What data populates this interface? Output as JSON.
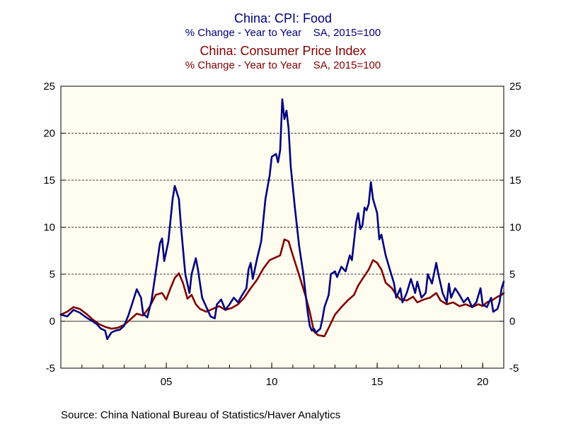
{
  "titles": {
    "series1_title": "China: CPI: Food",
    "series1_sub": "% Change - Year to Year    SA, 2015=100",
    "series2_title": "China: Consumer Price Index",
    "series2_sub": "% Change - Year to Year    SA, 2015=100"
  },
  "source": "Source:  China National Bureau of Statistics/Haver Analytics",
  "colors": {
    "cpi_food": "#000080",
    "cpi": "#800000",
    "plot_bg": "#FFFDF0",
    "frame": "#000000",
    "grid": "#000000"
  },
  "chart_data": {
    "type": "line",
    "xlabel": "",
    "ylabel": "",
    "xlim": [
      2000.0,
      2021.0
    ],
    "ylim": [
      -5,
      25
    ],
    "y_ticks": [
      -5,
      0,
      5,
      10,
      15,
      20,
      25
    ],
    "x_ticks": [
      {
        "value": 2005,
        "label": "05"
      },
      {
        "value": 2010,
        "label": "10"
      },
      {
        "value": 2015,
        "label": "15"
      },
      {
        "value": 2020,
        "label": "20"
      }
    ],
    "grid": "horizontal dashed at 5, 10, 15, 20",
    "series": [
      {
        "name": "China: CPI: Food",
        "color": "#000080",
        "points": [
          [
            2000.0,
            0.7
          ],
          [
            2000.3,
            0.5
          ],
          [
            2000.6,
            1.2
          ],
          [
            2000.9,
            0.9
          ],
          [
            2001.2,
            0.4
          ],
          [
            2001.5,
            0.0
          ],
          [
            2001.7,
            -0.3
          ],
          [
            2001.9,
            -0.8
          ],
          [
            2002.1,
            -1.0
          ],
          [
            2002.2,
            -1.9
          ],
          [
            2002.4,
            -1.2
          ],
          [
            2002.6,
            -1.0
          ],
          [
            2002.8,
            -0.9
          ],
          [
            2003.0,
            -0.5
          ],
          [
            2003.2,
            0.6
          ],
          [
            2003.4,
            2.0
          ],
          [
            2003.6,
            3.4
          ],
          [
            2003.8,
            2.5
          ],
          [
            2003.9,
            0.8
          ],
          [
            2004.1,
            0.4
          ],
          [
            2004.3,
            2.2
          ],
          [
            2004.5,
            5.2
          ],
          [
            2004.7,
            8.3
          ],
          [
            2004.8,
            8.8
          ],
          [
            2004.9,
            6.4
          ],
          [
            2005.1,
            8.5
          ],
          [
            2005.3,
            13.0
          ],
          [
            2005.4,
            14.4
          ],
          [
            2005.6,
            13.0
          ],
          [
            2005.7,
            10.0
          ],
          [
            2005.9,
            5.0
          ],
          [
            2006.1,
            3.0
          ],
          [
            2006.2,
            5.0
          ],
          [
            2006.4,
            6.7
          ],
          [
            2006.5,
            5.5
          ],
          [
            2006.7,
            2.5
          ],
          [
            2006.9,
            1.5
          ],
          [
            2007.1,
            0.5
          ],
          [
            2007.3,
            0.3
          ],
          [
            2007.4,
            1.8
          ],
          [
            2007.6,
            2.3
          ],
          [
            2007.8,
            1.2
          ],
          [
            2008.0,
            1.8
          ],
          [
            2008.2,
            2.5
          ],
          [
            2008.4,
            2.0
          ],
          [
            2008.6,
            2.8
          ],
          [
            2008.8,
            3.5
          ],
          [
            2008.9,
            5.5
          ],
          [
            2009.0,
            6.2
          ],
          [
            2009.1,
            4.5
          ],
          [
            2009.3,
            6.6
          ],
          [
            2009.5,
            8.5
          ],
          [
            2009.7,
            13.0
          ],
          [
            2009.9,
            15.5
          ],
          [
            2010.0,
            17.5
          ],
          [
            2010.2,
            17.8
          ],
          [
            2010.3,
            16.9
          ],
          [
            2010.4,
            18.2
          ],
          [
            2010.5,
            23.6
          ],
          [
            2010.6,
            21.5
          ],
          [
            2010.7,
            22.4
          ],
          [
            2010.8,
            20.5
          ],
          [
            2010.9,
            16.5
          ],
          [
            2011.1,
            12.0
          ],
          [
            2011.3,
            8.0
          ],
          [
            2011.5,
            5.0
          ],
          [
            2011.6,
            3.0
          ],
          [
            2011.7,
            1.0
          ],
          [
            2011.8,
            -0.5
          ],
          [
            2011.9,
            -1.0
          ],
          [
            2012.0,
            -0.8
          ],
          [
            2012.1,
            -1.2
          ],
          [
            2012.3,
            -0.8
          ],
          [
            2012.4,
            0.2
          ],
          [
            2012.5,
            1.5
          ],
          [
            2012.7,
            2.8
          ],
          [
            2012.8,
            5.0
          ],
          [
            2013.0,
            5.3
          ],
          [
            2013.1,
            4.7
          ],
          [
            2013.3,
            5.8
          ],
          [
            2013.5,
            5.3
          ],
          [
            2013.7,
            7.0
          ],
          [
            2013.8,
            6.5
          ],
          [
            2013.9,
            8.5
          ],
          [
            2014.0,
            10.5
          ],
          [
            2014.1,
            11.5
          ],
          [
            2014.2,
            9.8
          ],
          [
            2014.3,
            10.2
          ],
          [
            2014.4,
            12.1
          ],
          [
            2014.5,
            11.8
          ],
          [
            2014.6,
            12.5
          ],
          [
            2014.7,
            14.8
          ],
          [
            2014.8,
            13.0
          ],
          [
            2015.0,
            11.5
          ],
          [
            2015.1,
            8.7
          ],
          [
            2015.2,
            9.2
          ],
          [
            2015.4,
            7.0
          ],
          [
            2015.6,
            5.5
          ],
          [
            2015.8,
            4.0
          ],
          [
            2015.9,
            2.5
          ],
          [
            2016.1,
            3.5
          ],
          [
            2016.2,
            2.0
          ],
          [
            2016.4,
            3.0
          ],
          [
            2016.6,
            4.5
          ],
          [
            2016.8,
            3.0
          ],
          [
            2016.9,
            4.2
          ],
          [
            2017.1,
            2.5
          ],
          [
            2017.3,
            3.0
          ],
          [
            2017.4,
            5.0
          ],
          [
            2017.6,
            4.0
          ],
          [
            2017.8,
            6.2
          ],
          [
            2017.9,
            5.0
          ],
          [
            2018.1,
            3.0
          ],
          [
            2018.3,
            2.0
          ],
          [
            2018.4,
            4.0
          ],
          [
            2018.5,
            2.5
          ],
          [
            2018.7,
            3.5
          ],
          [
            2018.9,
            2.8
          ],
          [
            2019.1,
            2.0
          ],
          [
            2019.3,
            2.5
          ],
          [
            2019.5,
            1.5
          ],
          [
            2019.7,
            2.0
          ],
          [
            2019.9,
            3.5
          ],
          [
            2020.0,
            1.8
          ],
          [
            2020.2,
            1.5
          ],
          [
            2020.4,
            2.5
          ],
          [
            2020.5,
            1.0
          ],
          [
            2020.7,
            1.3
          ],
          [
            2020.8,
            2.0
          ],
          [
            2020.9,
            3.5
          ],
          [
            2021.0,
            4.2
          ]
        ]
      },
      {
        "name": "China: Consumer Price Index",
        "color": "#800000",
        "points": [
          [
            2000.0,
            0.7
          ],
          [
            2000.3,
            1.0
          ],
          [
            2000.6,
            1.5
          ],
          [
            2000.9,
            1.3
          ],
          [
            2001.2,
            0.8
          ],
          [
            2001.5,
            0.2
          ],
          [
            2001.8,
            -0.3
          ],
          [
            2002.1,
            -0.6
          ],
          [
            2002.4,
            -0.8
          ],
          [
            2002.7,
            -0.7
          ],
          [
            2003.0,
            -0.4
          ],
          [
            2003.3,
            0.2
          ],
          [
            2003.6,
            0.8
          ],
          [
            2003.9,
            0.6
          ],
          [
            2004.2,
            1.5
          ],
          [
            2004.5,
            2.8
          ],
          [
            2004.8,
            3.0
          ],
          [
            2005.0,
            2.3
          ],
          [
            2005.2,
            3.5
          ],
          [
            2005.4,
            4.6
          ],
          [
            2005.6,
            5.1
          ],
          [
            2005.8,
            4.0
          ],
          [
            2006.0,
            2.4
          ],
          [
            2006.2,
            2.8
          ],
          [
            2006.4,
            1.8
          ],
          [
            2006.6,
            1.3
          ],
          [
            2006.9,
            1.0
          ],
          [
            2007.2,
            1.3
          ],
          [
            2007.5,
            1.6
          ],
          [
            2007.8,
            1.2
          ],
          [
            2008.1,
            1.4
          ],
          [
            2008.4,
            1.8
          ],
          [
            2008.7,
            2.5
          ],
          [
            2009.0,
            3.5
          ],
          [
            2009.3,
            4.4
          ],
          [
            2009.6,
            5.6
          ],
          [
            2009.9,
            6.5
          ],
          [
            2010.2,
            6.8
          ],
          [
            2010.4,
            7.0
          ],
          [
            2010.6,
            8.7
          ],
          [
            2010.8,
            8.5
          ],
          [
            2011.0,
            7.0
          ],
          [
            2011.3,
            4.9
          ],
          [
            2011.6,
            2.7
          ],
          [
            2011.8,
            1.0
          ],
          [
            2012.0,
            -1.1
          ],
          [
            2012.2,
            -1.5
          ],
          [
            2012.5,
            -1.6
          ],
          [
            2012.7,
            -0.7
          ],
          [
            2013.0,
            0.7
          ],
          [
            2013.3,
            1.5
          ],
          [
            2013.6,
            2.2
          ],
          [
            2013.9,
            2.8
          ],
          [
            2014.1,
            3.8
          ],
          [
            2014.3,
            4.5
          ],
          [
            2014.6,
            5.5
          ],
          [
            2014.8,
            6.5
          ],
          [
            2015.0,
            6.2
          ],
          [
            2015.2,
            5.5
          ],
          [
            2015.4,
            4.1
          ],
          [
            2015.7,
            3.5
          ],
          [
            2015.9,
            2.8
          ],
          [
            2016.1,
            2.3
          ],
          [
            2016.4,
            2.2
          ],
          [
            2016.7,
            2.6
          ],
          [
            2016.9,
            2.0
          ],
          [
            2017.2,
            2.3
          ],
          [
            2017.5,
            2.5
          ],
          [
            2017.8,
            3.0
          ],
          [
            2018.0,
            2.2
          ],
          [
            2018.3,
            1.8
          ],
          [
            2018.6,
            2.0
          ],
          [
            2018.9,
            1.6
          ],
          [
            2019.2,
            1.8
          ],
          [
            2019.5,
            1.5
          ],
          [
            2019.8,
            1.8
          ],
          [
            2020.0,
            1.6
          ],
          [
            2020.2,
            2.0
          ],
          [
            2020.5,
            2.3
          ],
          [
            2020.7,
            2.6
          ],
          [
            2020.9,
            2.8
          ],
          [
            2021.0,
            3.0
          ]
        ]
      }
    ]
  }
}
